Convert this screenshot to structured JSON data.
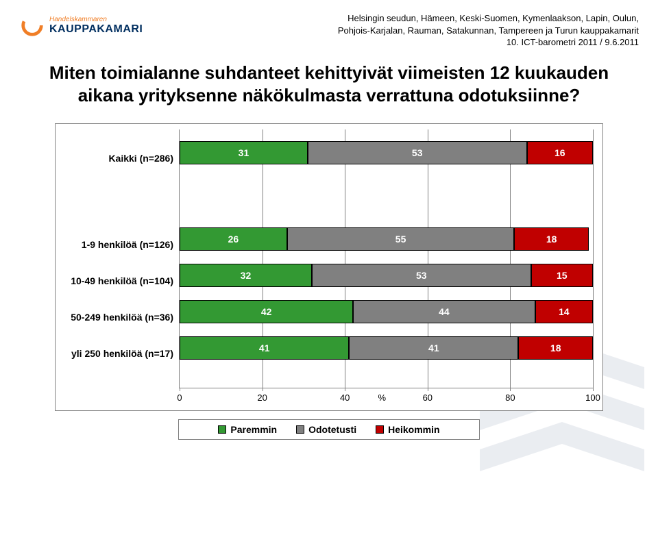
{
  "header": {
    "line1": "Helsingin seudun, Hämeen, Keski-Suomen, Kymenlaakson, Lapin, Oulun,",
    "line2": "Pohjois-Karjalan, Rauman, Satakunnan, Tampereen ja Turun kauppakamarit",
    "line3": "10. ICT-barometri 2011 / 9.6.2011",
    "logo_top": "Handelskammaren",
    "logo_main": "KAUPPAKAMARI",
    "logo_color_orange": "#f07e26",
    "logo_color_navy": "#002e5f"
  },
  "title": "Miten toimialanne suhdanteet kehittyivät viimeisten 12 kuukauden aikana yrityksenne näkökulmasta verrattuna odotuksiinne?",
  "chart": {
    "type": "stacked-bar-horizontal",
    "xlim": [
      0,
      100
    ],
    "xtick_step": 20,
    "xticks": [
      0,
      20,
      40,
      60,
      80,
      100
    ],
    "xlabel": "%",
    "grid_color": "#7f7f7f",
    "background_color": "#ffffff",
    "series": [
      {
        "label": "Paremmin",
        "color": "#339933"
      },
      {
        "label": "Odotetusti",
        "color": "#808080"
      },
      {
        "label": "Heikommin",
        "color": "#c00000"
      }
    ],
    "rows": [
      {
        "label": "Kaikki (n=286)",
        "values": [
          31,
          53,
          16
        ],
        "gap_after": true
      },
      {
        "label": "1-9 henkilöä (n=126)",
        "values": [
          26,
          55,
          18
        ]
      },
      {
        "label": "10-49 henkilöä (n=104)",
        "values": [
          32,
          53,
          15
        ]
      },
      {
        "label": "50-249 henkilöä (n=36)",
        "values": [
          42,
          44,
          14
        ]
      },
      {
        "label": "yli 250 henkilöä (n=17)",
        "values": [
          41,
          41,
          18
        ]
      }
    ],
    "label_fontsize": 14,
    "value_fontsize": 14
  },
  "legend": {
    "items": [
      "Paremmin",
      "Odotetusti",
      "Heikommin"
    ]
  }
}
